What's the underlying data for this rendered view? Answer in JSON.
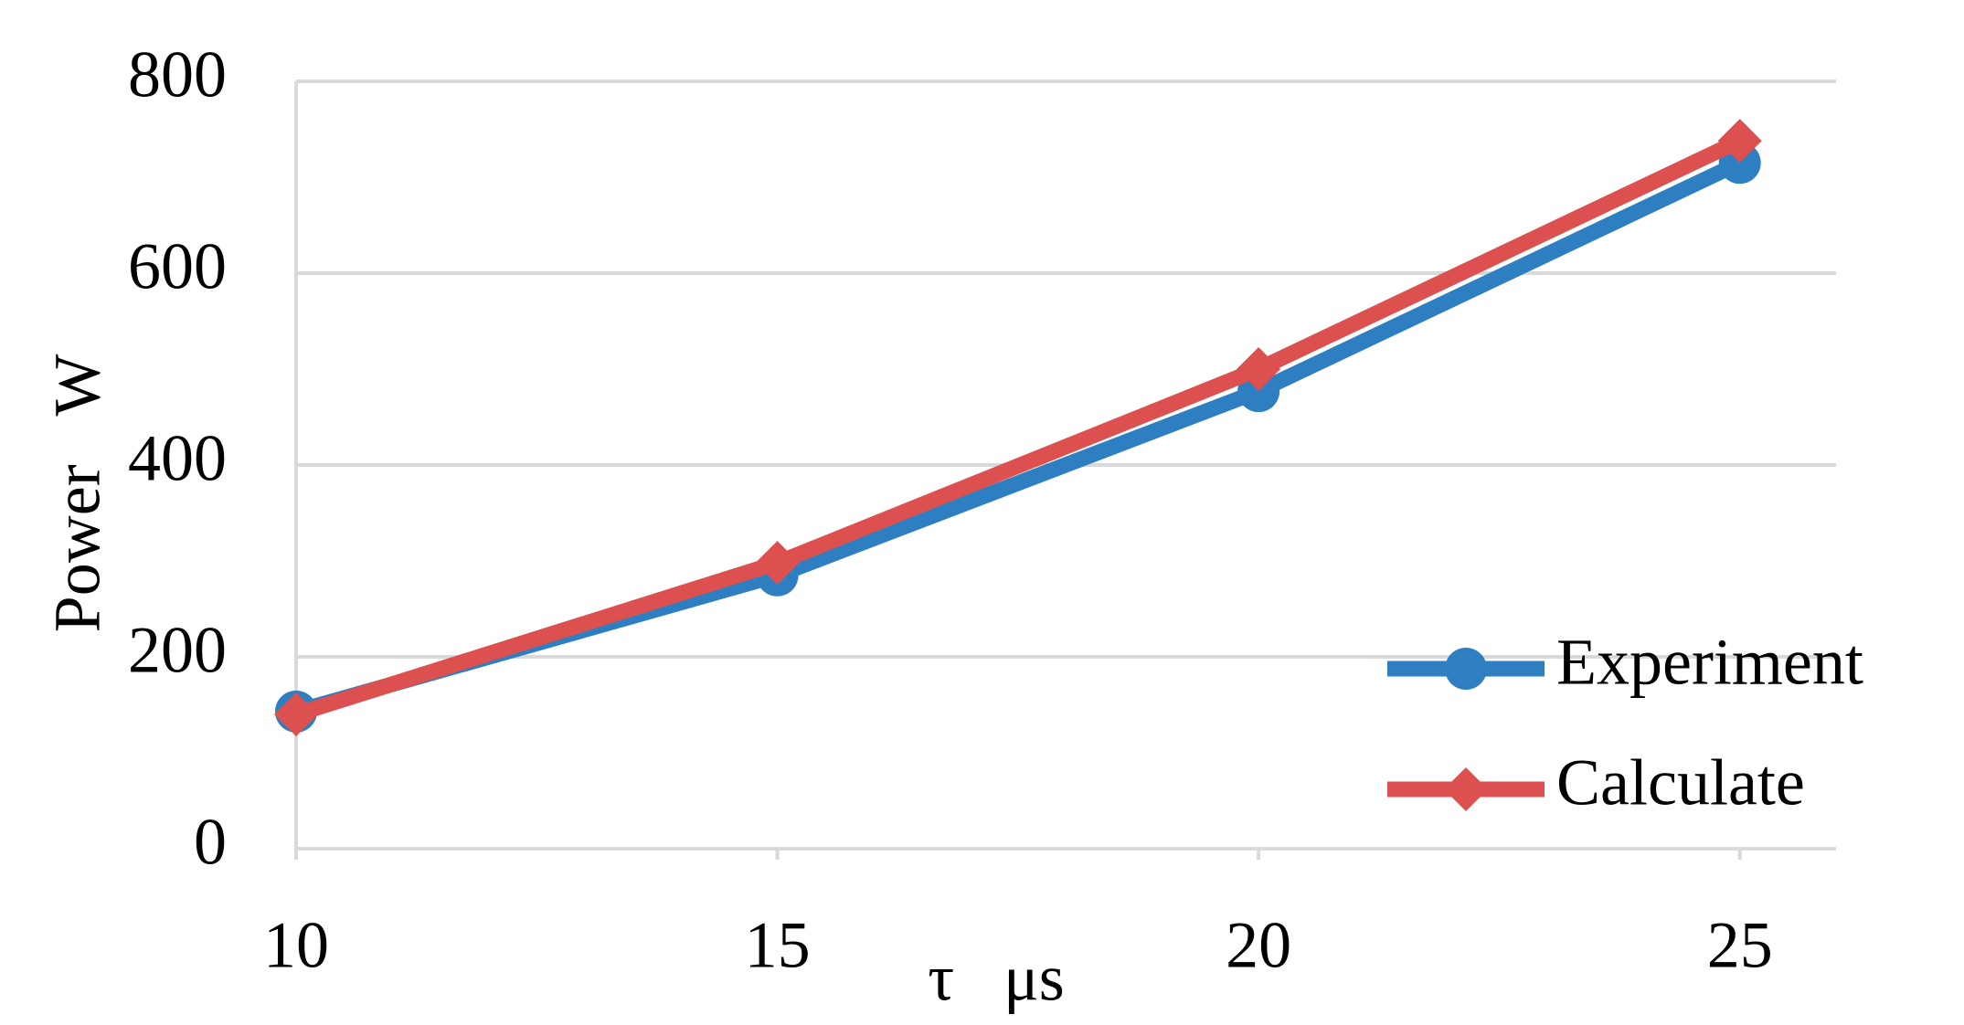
{
  "chart_data": {
    "type": "line",
    "x_label": "τ   μs",
    "y_label": "Power   W",
    "x": [
      10,
      15,
      20,
      25
    ],
    "series": [
      {
        "name": "Experiment",
        "color": "#2e7fc1",
        "marker": "circle",
        "values": [
          143,
          285,
          477,
          715
        ]
      },
      {
        "name": "Calculate",
        "color": "#dc5050",
        "marker": "diamond",
        "values": [
          140,
          298,
          500,
          738
        ]
      }
    ],
    "xlim": [
      10,
      26
    ],
    "xticks": [
      10,
      15,
      20,
      25
    ],
    "ylim": [
      0,
      800
    ],
    "yticks": [
      0,
      200,
      400,
      600,
      800
    ],
    "grid": true,
    "legend": "lower right"
  }
}
